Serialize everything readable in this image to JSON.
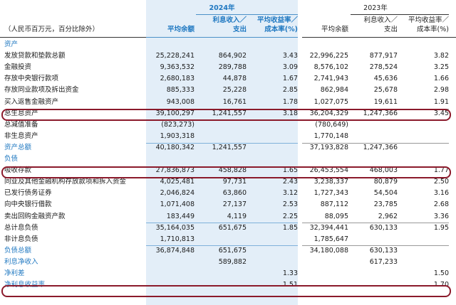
{
  "header": {
    "unit_note": "（人民币百万元，百分比除外）",
    "year_2024": "2024年",
    "year_2023": "2023年",
    "col_avg_balance": "平均余额",
    "col_interest_2024": [
      "利息收入／",
      "支出"
    ],
    "col_yield_2024": [
      "平均收益率／",
      "成本率(%)"
    ],
    "col_avg_balance_2023": "平均余额",
    "col_interest_2023": [
      "利息收入／",
      "支出"
    ],
    "col_yield_2023": [
      "平均收益率／",
      "成本率(%)"
    ]
  },
  "rows": [
    {
      "label": "资产",
      "section": true,
      "v": [
        "",
        "",
        "",
        "",
        "",
        ""
      ]
    },
    {
      "label": "发放贷款和垫款总额",
      "v": [
        "25,228,241",
        "864,902",
        "3.43",
        "22,996,225",
        "877,917",
        "3.82"
      ]
    },
    {
      "label": "金融投资",
      "v": [
        "9,363,532",
        "289,788",
        "3.09",
        "8,576,102",
        "278,524",
        "3.25"
      ]
    },
    {
      "label": "存放中央银行款项",
      "v": [
        "2,680,183",
        "44,878",
        "1.67",
        "2,741,943",
        "45,636",
        "1.66"
      ]
    },
    {
      "label": "存放同业款项及拆出资金",
      "v": [
        "885,333",
        "25,228",
        "2.85",
        "862,984",
        "25,678",
        "2.98"
      ]
    },
    {
      "label": "买入返售金融资产",
      "v": [
        "943,008",
        "16,761",
        "1.78",
        "1,027,075",
        "19,611",
        "1.91"
      ]
    },
    {
      "label": "总生息资产",
      "v": [
        "39,100,297",
        "1,241,557",
        "3.18",
        "36,204,329",
        "1,247,366",
        "3.45"
      ]
    },
    {
      "label": "总减值准备",
      "v": [
        "(823,273)",
        "",
        "",
        "(780,649)",
        "",
        ""
      ]
    },
    {
      "label": "非生息资产",
      "v": [
        "1,903,318",
        "",
        "",
        "1,770,148",
        "",
        ""
      ]
    },
    {
      "label": "资产总额",
      "section": true,
      "v": [
        "40,180,342",
        "1,241,557",
        "",
        "37,193,828",
        "1,247,366",
        ""
      ]
    },
    {
      "label": "负债",
      "section": true,
      "v": [
        "",
        "",
        "",
        "",
        "",
        ""
      ]
    },
    {
      "label": "吸收存款",
      "v": [
        "27,836,873",
        "458,828",
        "1.65",
        "26,453,554",
        "468,003",
        "1.77"
      ]
    },
    {
      "label": "同业及其他金融机构存放款项和拆入资金",
      "v": [
        "4,025,481",
        "97,731",
        "2.43",
        "3,238,337",
        "80,879",
        "2.50"
      ]
    },
    {
      "label": "已发行债务证券",
      "v": [
        "2,046,824",
        "63,860",
        "3.12",
        "1,727,343",
        "54,504",
        "3.16"
      ]
    },
    {
      "label": "向中央银行借款",
      "v": [
        "1,071,408",
        "27,137",
        "2.53",
        "887,112",
        "23,785",
        "2.68"
      ]
    },
    {
      "label": "卖出回购金融资产款",
      "v": [
        "183,449",
        "4,119",
        "2.25",
        "88,095",
        "2,962",
        "3.36"
      ]
    },
    {
      "label": "总计息负债",
      "v": [
        "35,164,035",
        "651,675",
        "1.85",
        "32,394,441",
        "630,133",
        "1.95"
      ]
    },
    {
      "label": "非计息负债",
      "v": [
        "1,710,813",
        "",
        "",
        "1,785,647",
        "",
        ""
      ]
    },
    {
      "label": "负债总额",
      "section": true,
      "v": [
        "36,874,848",
        "651,675",
        "",
        "34,180,088",
        "630,133",
        ""
      ]
    },
    {
      "label": "利息净收入",
      "section": true,
      "v": [
        "",
        "589,882",
        "",
        "",
        "617,233",
        ""
      ]
    },
    {
      "label": "净利差",
      "section": true,
      "v": [
        "",
        "",
        "1.33",
        "",
        "",
        "1.50"
      ]
    },
    {
      "label": "净利息收益率",
      "section": true,
      "v": [
        "",
        "",
        "1.51",
        "",
        "",
        "1.70"
      ]
    }
  ]
}
